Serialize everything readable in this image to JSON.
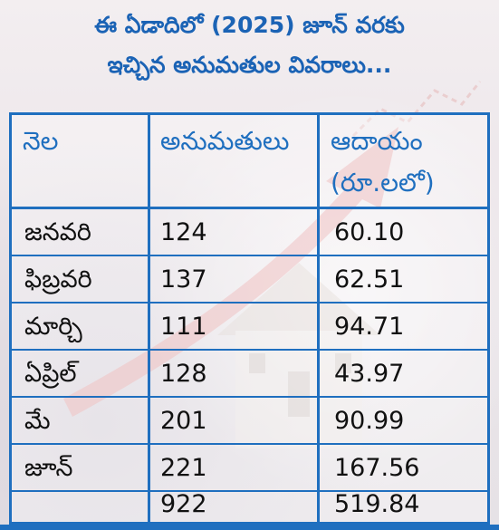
{
  "title": {
    "line1": "ఈ ఏడాదిలో (2025) జూన్ వరకు",
    "line2": "ఇచ్చిన అనుమతుల వివరాలు..."
  },
  "table": {
    "headers": {
      "month": "నెల",
      "permits": "అనుమతులు",
      "revenue_line1": "ఆదాయం",
      "revenue_line2": "(రూ.లలో)"
    },
    "rows": [
      {
        "month": "జనవరి",
        "permits": "124",
        "revenue": "60.10"
      },
      {
        "month": "ఫిబ్రవరి",
        "permits": "137",
        "revenue": "62.51"
      },
      {
        "month": "మార్చి",
        "permits": "111",
        "revenue": "94.71"
      },
      {
        "month": "ఏప్రిల్",
        "permits": "128",
        "revenue": "43.97"
      },
      {
        "month": "మే",
        "permits": "201",
        "revenue": "90.99"
      },
      {
        "month": "జూన్",
        "permits": "221",
        "revenue": "167.56"
      }
    ],
    "total": {
      "month": "",
      "permits": "922",
      "revenue": "519.84"
    }
  },
  "colors": {
    "title": "#1b63b5",
    "border": "#1f6fbf",
    "header_text": "#1f6fbf",
    "body_text": "#111111"
  }
}
